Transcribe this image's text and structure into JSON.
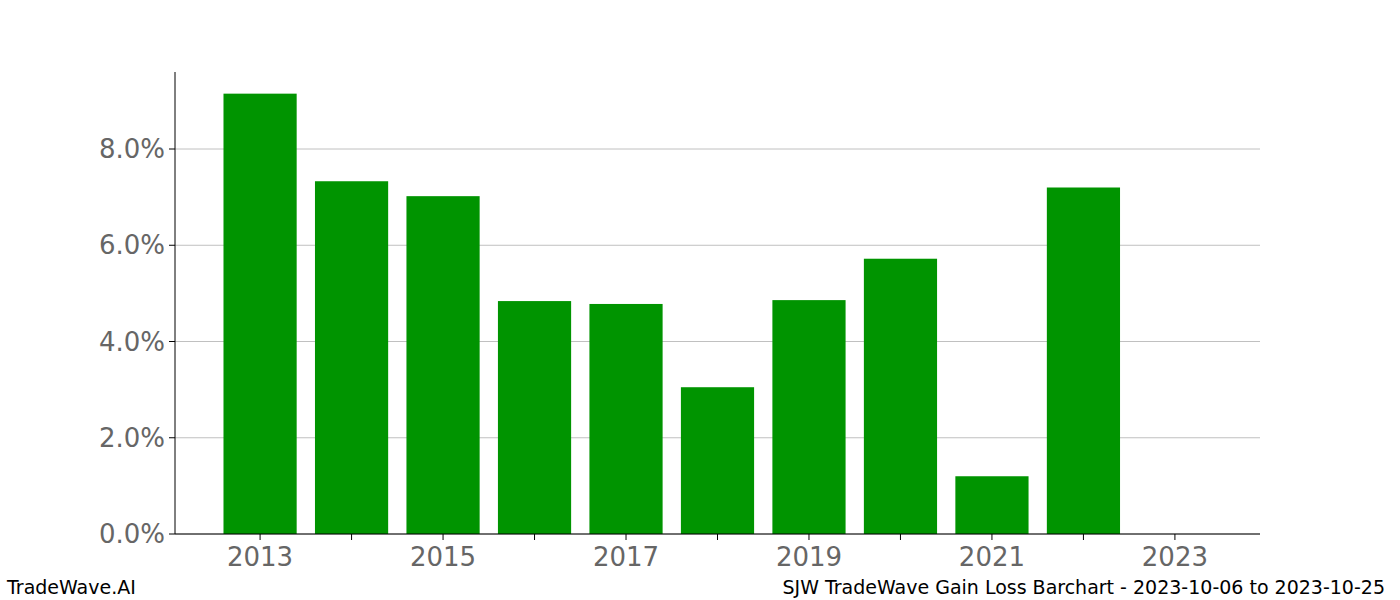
{
  "chart_data": {
    "type": "bar",
    "title": "SJW TradeWave Gain Loss Barchart - 2023-10-06 to 2023-10-25",
    "annotations": [
      "TradeWave.AI"
    ],
    "x": [
      2013,
      2014,
      2015,
      2016,
      2017,
      2018,
      2019,
      2020,
      2021,
      2022,
      2023
    ],
    "values": [
      9.15,
      7.33,
      7.02,
      4.84,
      4.78,
      3.05,
      4.86,
      5.72,
      1.2,
      7.2,
      0
    ],
    "color": "#009400",
    "xlim": [
      2012.07,
      2023.93
    ],
    "xticks": [
      2013,
      2015,
      2017,
      2019,
      2021,
      2023
    ],
    "ylim": [
      0,
      9.6
    ],
    "yticks": [
      {
        "value": 0,
        "label": "0.0%"
      },
      {
        "value": 2,
        "label": "2.0%"
      },
      {
        "value": 4,
        "label": "4.0%"
      },
      {
        "value": 6,
        "label": "6.0%"
      },
      {
        "value": 8,
        "label": "8.0%"
      }
    ],
    "grid": true
  }
}
